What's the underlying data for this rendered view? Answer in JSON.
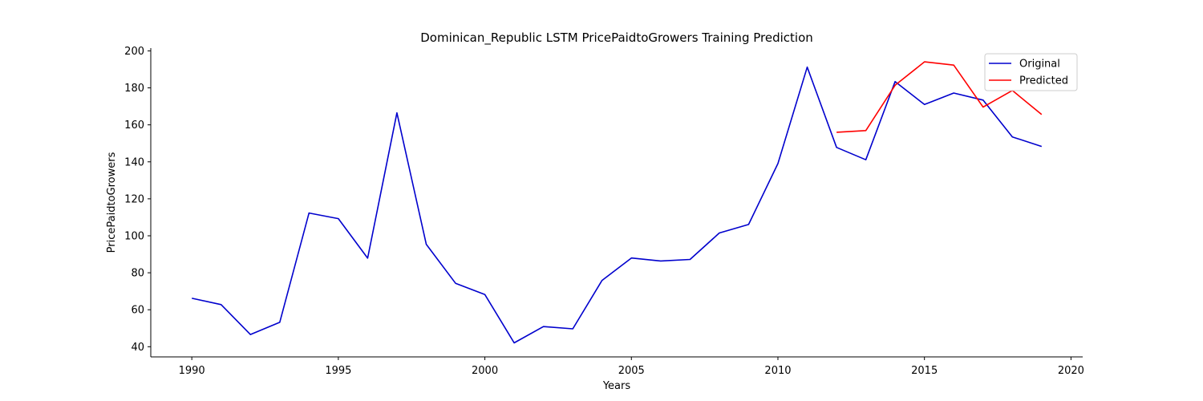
{
  "chart_data": {
    "type": "line",
    "title": "Dominican_Republic LSTM PricePaidtoGrowers Training Prediction",
    "xlabel": "Years",
    "ylabel": "PricePaidtoGrowers",
    "xlim": [
      1988.6,
      2020.4
    ],
    "ylim": [
      34.5,
      201.5
    ],
    "xticks": [
      1990,
      1995,
      2000,
      2005,
      2010,
      2015,
      2020
    ],
    "yticks": [
      40,
      60,
      80,
      100,
      120,
      140,
      160,
      180,
      200
    ],
    "grid": false,
    "legend_position": "top-right",
    "series": [
      {
        "name": "Original",
        "color": "#0000cd",
        "x": [
          1990,
          1991,
          1992,
          1993,
          1994,
          1995,
          1996,
          1997,
          1998,
          1999,
          2000,
          2001,
          2002,
          2003,
          2004,
          2005,
          2006,
          2007,
          2008,
          2009,
          2010,
          2011,
          2012,
          2013,
          2014,
          2015,
          2016,
          2017,
          2018,
          2019
        ],
        "y": [
          66.2,
          62.8,
          46.6,
          53.2,
          112.3,
          109.3,
          87.9,
          166.5,
          95.4,
          74.3,
          68.2,
          42.1,
          50.9,
          49.7,
          75.9,
          88.0,
          86.4,
          87.2,
          101.5,
          106.1,
          139.1,
          191.2,
          147.8,
          141.1,
          183.4,
          171.0,
          177.2,
          173.4,
          153.5,
          148.3
        ]
      },
      {
        "name": "Predicted",
        "color": "#ff0000",
        "x": [
          2012,
          2013,
          2014,
          2015,
          2016,
          2017,
          2018,
          2019
        ],
        "y": [
          156.0,
          156.9,
          181.4,
          194.1,
          192.3,
          169.6,
          178.6,
          165.6
        ]
      }
    ]
  }
}
